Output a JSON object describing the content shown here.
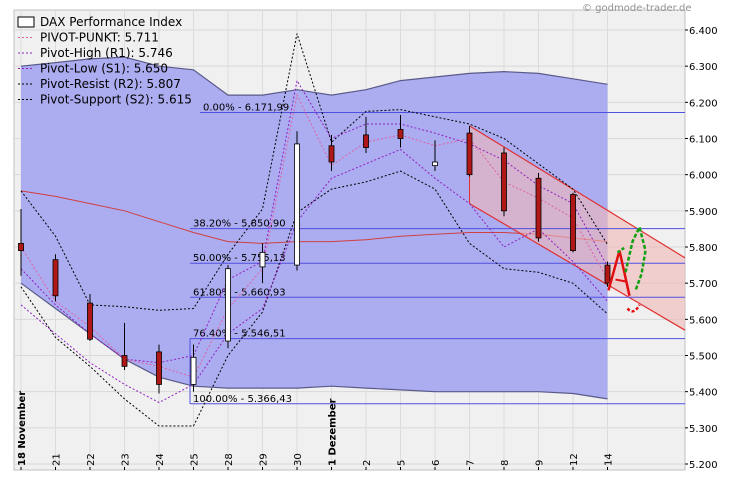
{
  "watermark": "© godmode-trader.de",
  "legend": [
    {
      "label": "DAX Performance Index",
      "style": "box"
    },
    {
      "label": "PIVOT-PUNKT: 5.711",
      "style": "dot-pink"
    },
    {
      "label": "Pivot-High (R1): 5.746",
      "style": "dot-purple"
    },
    {
      "label": "Pivot-Low (S1): 5.650",
      "style": "dot-purple"
    },
    {
      "label": "Pivot-Resist (R2): 5.807",
      "style": "dot-black"
    },
    {
      "label": "Pivot-Support (S2): 5.615",
      "style": "dot-black"
    }
  ],
  "colors": {
    "band_fill": "#a8a8f0",
    "band_stroke": "#5a5a8a",
    "fib_line": "#5050e0",
    "channel": "#e03030",
    "channel_fill": "#f0b8b8",
    "ma": "#d04040",
    "candle_down": "#b01818",
    "candle_up": "#ffffff",
    "pivot_pink": "#e060a0",
    "pivot_purple": "#9020c0",
    "pivot_black": "#000000",
    "arrow_red": "#e01010",
    "arrow_green": "#10a010"
  },
  "chart_data": {
    "type": "candlestick",
    "ylim": [
      5200,
      6420
    ],
    "yticks": [
      "6.400",
      "6.300",
      "6.200",
      "6.100",
      "6.000",
      "5.900",
      "5.800",
      "5.700",
      "5.600",
      "5.500",
      "5.400",
      "5.300",
      "5.200"
    ],
    "ytick_values": [
      6400,
      6300,
      6200,
      6100,
      6000,
      5900,
      5800,
      5700,
      5600,
      5500,
      5400,
      5300,
      5200
    ],
    "xlabels": [
      "18 November",
      "21",
      "22",
      "23",
      "24",
      "25",
      "28",
      "29",
      "30",
      "1 Dezember",
      "2",
      "5",
      "6",
      "7",
      "8",
      "9",
      "12",
      "14"
    ],
    "candles": [
      {
        "o": 5810,
        "h": 5905,
        "l": 5720,
        "c": 5790
      },
      {
        "o": 5765,
        "h": 5780,
        "l": 5650,
        "c": 5665
      },
      {
        "o": 5645,
        "h": 5670,
        "l": 5540,
        "c": 5545
      },
      {
        "o": 5500,
        "h": 5590,
        "l": 5460,
        "c": 5470
      },
      {
        "o": 5510,
        "h": 5530,
        "l": 5395,
        "c": 5420
      },
      {
        "o": 5420,
        "h": 5530,
        "l": 5400,
        "c": 5495
      },
      {
        "o": 5540,
        "h": 5750,
        "l": 5520,
        "c": 5740
      },
      {
        "o": 5745,
        "h": 5810,
        "l": 5700,
        "c": 5785
      },
      {
        "o": 5750,
        "h": 6120,
        "l": 5735,
        "c": 6085
      },
      {
        "o": 6080,
        "h": 6110,
        "l": 6010,
        "c": 6035
      },
      {
        "o": 6110,
        "h": 6160,
        "l": 6060,
        "c": 6075
      },
      {
        "o": 6125,
        "h": 6165,
        "l": 6075,
        "c": 6100
      },
      {
        "o": 6025,
        "h": 6095,
        "l": 6010,
        "c": 6035
      },
      {
        "o": 6115,
        "h": 6135,
        "l": 5995,
        "c": 6000
      },
      {
        "o": 6060,
        "h": 6075,
        "l": 5885,
        "c": 5900
      },
      {
        "o": 5990,
        "h": 6005,
        "l": 5815,
        "c": 5825
      },
      {
        "o": 5945,
        "h": 5950,
        "l": 5785,
        "c": 5790
      },
      {
        "o": 5750,
        "h": 5760,
        "l": 5690,
        "c": 5700
      }
    ],
    "band_upper": [
      6300,
      6310,
      6320,
      6325,
      6300,
      6290,
      6220,
      6220,
      6235,
      6220,
      6235,
      6260,
      6270,
      6280,
      6285,
      6280,
      6265,
      6250
    ],
    "band_lower": [
      5700,
      5630,
      5560,
      5490,
      5440,
      5415,
      5410,
      5410,
      5410,
      5415,
      5410,
      5405,
      5400,
      5400,
      5400,
      5400,
      5395,
      5380
    ],
    "moving_average": [
      5955,
      5940,
      5920,
      5900,
      5870,
      5840,
      5815,
      5810,
      5815,
      5815,
      5820,
      5830,
      5835,
      5840,
      5840,
      5835,
      5825,
      5815
    ],
    "pivot_point": [
      5800,
      5650,
      5580,
      5490,
      5470,
      5440,
      5630,
      5740,
      6220,
      6025,
      6090,
      6110,
      6080,
      6100,
      5980,
      5935,
      5880,
      5711
    ],
    "pivot_r1": [
      5740,
      5640,
      5560,
      5490,
      5480,
      5500,
      5710,
      5760,
      6260,
      6100,
      6140,
      6140,
      6115,
      6085,
      6040,
      5970,
      5920,
      5746
    ],
    "pivot_s1": [
      5640,
      5560,
      5480,
      5420,
      5370,
      5420,
      5560,
      5630,
      5870,
      5990,
      6030,
      6070,
      5990,
      5920,
      5800,
      5850,
      5760,
      5650
    ],
    "pivot_r2": [
      5955,
      5830,
      5640,
      5635,
      5625,
      5630,
      5780,
      5905,
      6390,
      6090,
      6175,
      6180,
      6160,
      6140,
      6100,
      6030,
      5960,
      5807
    ],
    "pivot_s2": [
      5690,
      5550,
      5470,
      5380,
      5305,
      5305,
      5500,
      5620,
      5895,
      5960,
      5980,
      6010,
      5960,
      5810,
      5740,
      5730,
      5700,
      5615
    ],
    "fib_levels": [
      {
        "value": 6171.99,
        "label": "0.00% - 6.171,99"
      },
      {
        "value": 5850.9,
        "label": "38.20% - 5.850,90"
      },
      {
        "value": 5755.13,
        "label": "50.00% - 5.755,13"
      },
      {
        "value": 5660.93,
        "label": "61.80% - 5.660,93"
      },
      {
        "value": 5546.51,
        "label": "76.40% - 5.546,51"
      },
      {
        "value": 5366.43,
        "label": "100.00% - 5.366,43"
      }
    ],
    "channel": {
      "start_index": 13,
      "upper": [
        6135,
        5770
      ],
      "lower": [
        5920,
        5570
      ]
    }
  }
}
